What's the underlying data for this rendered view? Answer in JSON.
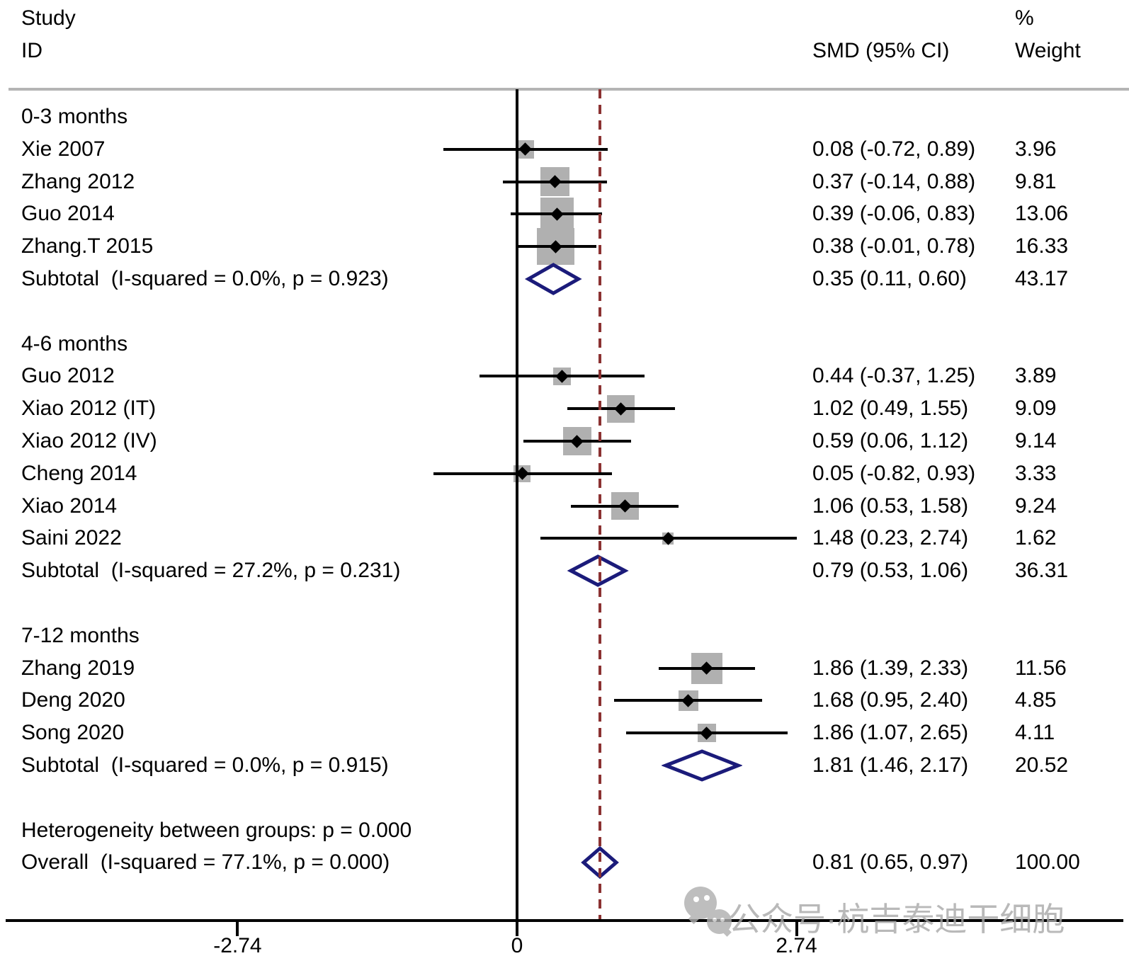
{
  "chart_data": {
    "type": "forest",
    "effect_measure": "SMD",
    "columns": {
      "study_line1": "Study",
      "study_line2": "ID",
      "smd": "SMD (95% CI)",
      "weight_line1": "%",
      "weight_line2": "Weight"
    },
    "x_axis": {
      "ticks": [
        {
          "value": -2.74,
          "label": "-2.74"
        },
        {
          "value": 0,
          "label": "0"
        },
        {
          "value": 2.74,
          "label": "2.74"
        }
      ],
      "null_line_value": 0,
      "overall_dashed_line_value": 0.81
    },
    "rows": [
      {
        "type": "group",
        "label": "0-3 months"
      },
      {
        "type": "study",
        "label": "Xie 2007",
        "est": 0.08,
        "lo": -0.72,
        "hi": 0.89,
        "weight": 3.96,
        "smd_text": "0.08 (-0.72, 0.89)",
        "weight_text": "3.96"
      },
      {
        "type": "study",
        "label": "Zhang 2012",
        "est": 0.37,
        "lo": -0.14,
        "hi": 0.88,
        "weight": 9.81,
        "smd_text": "0.37 (-0.14, 0.88)",
        "weight_text": "9.81"
      },
      {
        "type": "study",
        "label": "Guo 2014",
        "est": 0.39,
        "lo": -0.06,
        "hi": 0.83,
        "weight": 13.06,
        "smd_text": "0.39 (-0.06, 0.83)",
        "weight_text": "13.06"
      },
      {
        "type": "study",
        "label": "Zhang.T 2015",
        "est": 0.38,
        "lo": -0.01,
        "hi": 0.78,
        "weight": 16.33,
        "smd_text": "0.38 (-0.01, 0.78)",
        "weight_text": "16.33"
      },
      {
        "type": "subtotal",
        "label": "Subtotal  (I-squared = 0.0%, p = 0.923)",
        "est": 0.35,
        "lo": 0.11,
        "hi": 0.6,
        "weight": 43.17,
        "smd_text": "0.35 (0.11, 0.60)",
        "weight_text": "43.17"
      },
      {
        "type": "spacer"
      },
      {
        "type": "group",
        "label": "4-6 months"
      },
      {
        "type": "study",
        "label": "Guo 2012",
        "est": 0.44,
        "lo": -0.37,
        "hi": 1.25,
        "weight": 3.89,
        "smd_text": "0.44 (-0.37, 1.25)",
        "weight_text": "3.89"
      },
      {
        "type": "study",
        "label": "Xiao 2012 (IT)",
        "est": 1.02,
        "lo": 0.49,
        "hi": 1.55,
        "weight": 9.09,
        "smd_text": "1.02 (0.49, 1.55)",
        "weight_text": "9.09"
      },
      {
        "type": "study",
        "label": "Xiao 2012 (IV)",
        "est": 0.59,
        "lo": 0.06,
        "hi": 1.12,
        "weight": 9.14,
        "smd_text": "0.59 (0.06, 1.12)",
        "weight_text": "9.14"
      },
      {
        "type": "study",
        "label": "Cheng 2014",
        "est": 0.05,
        "lo": -0.82,
        "hi": 0.93,
        "weight": 3.33,
        "smd_text": "0.05 (-0.82, 0.93)",
        "weight_text": "3.33"
      },
      {
        "type": "study",
        "label": "Xiao 2014",
        "est": 1.06,
        "lo": 0.53,
        "hi": 1.58,
        "weight": 9.24,
        "smd_text": "1.06 (0.53, 1.58)",
        "weight_text": "9.24"
      },
      {
        "type": "study",
        "label": "Saini 2022",
        "est": 1.48,
        "lo": 0.23,
        "hi": 2.74,
        "weight": 1.62,
        "smd_text": "1.48 (0.23, 2.74)",
        "weight_text": "1.62"
      },
      {
        "type": "subtotal",
        "label": "Subtotal  (I-squared = 27.2%, p = 0.231)",
        "est": 0.79,
        "lo": 0.53,
        "hi": 1.06,
        "weight": 36.31,
        "smd_text": "0.79 (0.53, 1.06)",
        "weight_text": "36.31"
      },
      {
        "type": "spacer"
      },
      {
        "type": "group",
        "label": "7-12 months"
      },
      {
        "type": "study",
        "label": "Zhang 2019",
        "est": 1.86,
        "lo": 1.39,
        "hi": 2.33,
        "weight": 11.56,
        "smd_text": "1.86 (1.39, 2.33)",
        "weight_text": "11.56"
      },
      {
        "type": "study",
        "label": "Deng 2020",
        "est": 1.68,
        "lo": 0.95,
        "hi": 2.4,
        "weight": 4.85,
        "smd_text": "1.68 (0.95, 2.40)",
        "weight_text": "4.85"
      },
      {
        "type": "study",
        "label": "Song 2020",
        "est": 1.86,
        "lo": 1.07,
        "hi": 2.65,
        "weight": 4.11,
        "smd_text": "1.86 (1.07, 2.65)",
        "weight_text": "4.11"
      },
      {
        "type": "subtotal",
        "label": "Subtotal  (I-squared = 0.0%, p = 0.915)",
        "est": 1.81,
        "lo": 1.46,
        "hi": 2.17,
        "weight": 20.52,
        "smd_text": "1.81 (1.46, 2.17)",
        "weight_text": "20.52"
      },
      {
        "type": "spacer"
      },
      {
        "type": "note",
        "label": "Heterogeneity between groups: p = 0.000"
      },
      {
        "type": "overall",
        "label": "Overall  (I-squared = 77.1%, p = 0.000)",
        "est": 0.81,
        "lo": 0.65,
        "hi": 0.97,
        "weight": 100.0,
        "smd_text": "0.81 (0.65, 0.97)",
        "weight_text": "100.00"
      }
    ]
  },
  "watermark": {
    "icon": "wechat-icon",
    "text": "公众号·杭吉泰迪干细胞"
  },
  "colors": {
    "background": "#ffffff",
    "text": "#000000",
    "weight_box": "#b0b0b0",
    "ci_line": "#000000",
    "diamond_stroke": "#1b1b7a",
    "overall_dashed_line": "#8b3232",
    "header_rule": "#b4b4b4",
    "watermark": "#a8a8a8"
  }
}
